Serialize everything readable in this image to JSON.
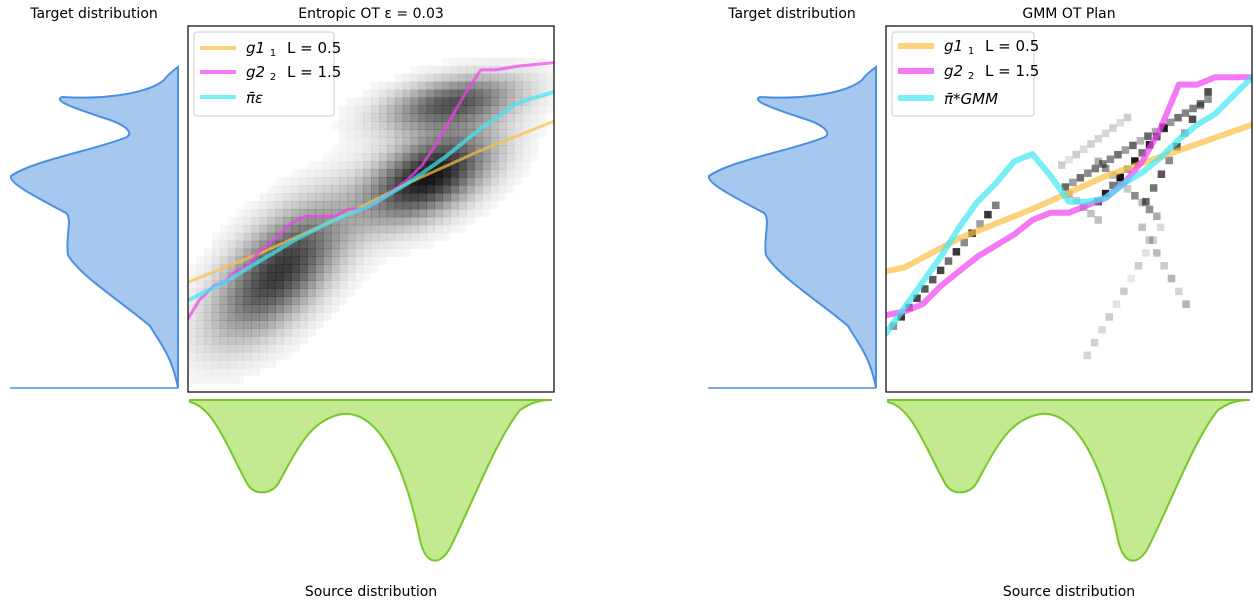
{
  "chart_data": [
    {
      "type": "line",
      "title": "Entropic OT ε = 0.03",
      "xlim": [
        0,
        1
      ],
      "ylim": [
        0,
        1
      ],
      "grid": false,
      "legend_placement": "top-left",
      "marginal_target_label": "Target distribution",
      "marginal_source_label": "Source distribution",
      "background": {
        "type": "heatmap",
        "description_blobs": [
          {
            "cx": 0.25,
            "cy": 0.33,
            "sx": 0.09,
            "sy": 0.075,
            "w": 0.85,
            "angle": 0.8
          },
          {
            "cx": 0.66,
            "cy": 0.59,
            "sx": 0.075,
            "sy": 0.065,
            "w": 1.0,
            "angle": 0.5
          },
          {
            "cx": 0.72,
            "cy": 0.79,
            "sx": 0.075,
            "sy": 0.045,
            "w": 0.7,
            "angle": 0.2
          }
        ]
      },
      "series": [
        {
          "name": "g1",
          "subscript": "1",
          "param": "L = 0.5",
          "color": "#fbbf45",
          "x": [
            0.0,
            0.2,
            0.4,
            0.6,
            0.8,
            1.0
          ],
          "y": [
            0.3,
            0.38,
            0.47,
            0.57,
            0.66,
            0.74
          ]
        },
        {
          "name": "g2",
          "subscript": "2",
          "param": "L = 1.5",
          "color": "#f13ef0",
          "x": [
            0.0,
            0.03,
            0.07,
            0.1,
            0.13,
            0.16,
            0.2,
            0.24,
            0.28,
            0.32,
            0.36,
            0.4,
            0.44,
            0.48,
            0.52,
            0.56,
            0.6,
            0.64,
            0.68,
            0.72,
            0.76,
            0.8,
            0.84,
            0.9,
            1.0
          ],
          "y": [
            0.2,
            0.25,
            0.29,
            0.3,
            0.33,
            0.34,
            0.39,
            0.42,
            0.46,
            0.48,
            0.48,
            0.48,
            0.5,
            0.5,
            0.52,
            0.55,
            0.58,
            0.62,
            0.68,
            0.75,
            0.82,
            0.88,
            0.88,
            0.89,
            0.9
          ]
        },
        {
          "name": "π̄ε",
          "color": "#3ee7f4",
          "x": [
            0.0,
            0.1,
            0.2,
            0.3,
            0.4,
            0.5,
            0.6,
            0.7,
            0.8,
            0.9,
            1.0
          ],
          "y": [
            0.25,
            0.3,
            0.36,
            0.42,
            0.47,
            0.51,
            0.57,
            0.64,
            0.72,
            0.79,
            0.82
          ]
        }
      ]
    },
    {
      "type": "line",
      "title": "GMM OT Plan",
      "xlim": [
        0,
        1
      ],
      "ylim": [
        0,
        1
      ],
      "grid": false,
      "legend_placement": "top-left",
      "marginal_target_label": "Target distribution",
      "marginal_source_label": "Source distribution",
      "background": {
        "type": "heatmap",
        "description_bands": [
          {
            "x0": 0.02,
            "y0": 0.18,
            "x1": 0.3,
            "y1": 0.51,
            "strength": 0.8
          },
          {
            "x0": 0.58,
            "y0": 0.52,
            "x1": 0.76,
            "y1": 0.72,
            "strength": 0.9
          },
          {
            "x0": 0.48,
            "y0": 0.62,
            "x1": 0.66,
            "y1": 0.75,
            "strength": 0.2
          },
          {
            "x0": 0.5,
            "y0": 0.54,
            "x1": 0.58,
            "y1": 0.47,
            "strength": 0.3
          },
          {
            "x0": 0.58,
            "y0": 0.63,
            "x1": 0.74,
            "y1": 0.48,
            "strength": 0.45
          },
          {
            "x0": 0.49,
            "y0": 0.56,
            "x1": 0.88,
            "y1": 0.8,
            "strength": 0.6
          },
          {
            "x0": 0.71,
            "y0": 0.52,
            "x1": 0.88,
            "y1": 0.82,
            "strength": 0.7
          },
          {
            "x0": 0.7,
            "y0": 0.45,
            "x1": 0.82,
            "y1": 0.24,
            "strength": 0.3
          },
          {
            "x0": 0.55,
            "y0": 0.1,
            "x1": 0.75,
            "y1": 0.45,
            "strength": 0.2
          }
        ]
      },
      "series": [
        {
          "name": "g1",
          "subscript": "1",
          "param": "L = 0.5",
          "color": "#fbbf45",
          "x": [
            0.0,
            0.05,
            0.2,
            0.4,
            0.6,
            0.8,
            1.0
          ],
          "y": [
            0.33,
            0.34,
            0.42,
            0.5,
            0.59,
            0.66,
            0.73
          ]
        },
        {
          "name": "g2",
          "subscript": "2",
          "param": "L = 1.5",
          "color": "#f13ef0",
          "x": [
            0.0,
            0.05,
            0.1,
            0.15,
            0.2,
            0.25,
            0.3,
            0.35,
            0.4,
            0.45,
            0.5,
            0.55,
            0.6,
            0.65,
            0.7,
            0.75,
            0.8,
            0.85,
            0.9,
            1.0
          ],
          "y": [
            0.21,
            0.22,
            0.24,
            0.29,
            0.33,
            0.37,
            0.4,
            0.43,
            0.47,
            0.49,
            0.49,
            0.51,
            0.53,
            0.57,
            0.63,
            0.72,
            0.84,
            0.84,
            0.86,
            0.86
          ]
        },
        {
          "name": "π̄*GMM",
          "color": "#3ee7f4",
          "x": [
            0.0,
            0.05,
            0.1,
            0.15,
            0.2,
            0.25,
            0.3,
            0.35,
            0.4,
            0.45,
            0.5,
            0.55,
            0.6,
            0.65,
            0.7,
            0.75,
            0.8,
            0.85,
            0.9,
            1.0
          ],
          "y": [
            0.16,
            0.23,
            0.3,
            0.37,
            0.45,
            0.52,
            0.57,
            0.63,
            0.65,
            0.59,
            0.52,
            0.52,
            0.53,
            0.57,
            0.6,
            0.64,
            0.69,
            0.73,
            0.76,
            0.86
          ]
        }
      ]
    }
  ],
  "colors": {
    "target_fill": "#a6c8ee",
    "target_line": "#4a90e2",
    "source_fill": "#c3e991",
    "source_line": "#78c82a"
  }
}
